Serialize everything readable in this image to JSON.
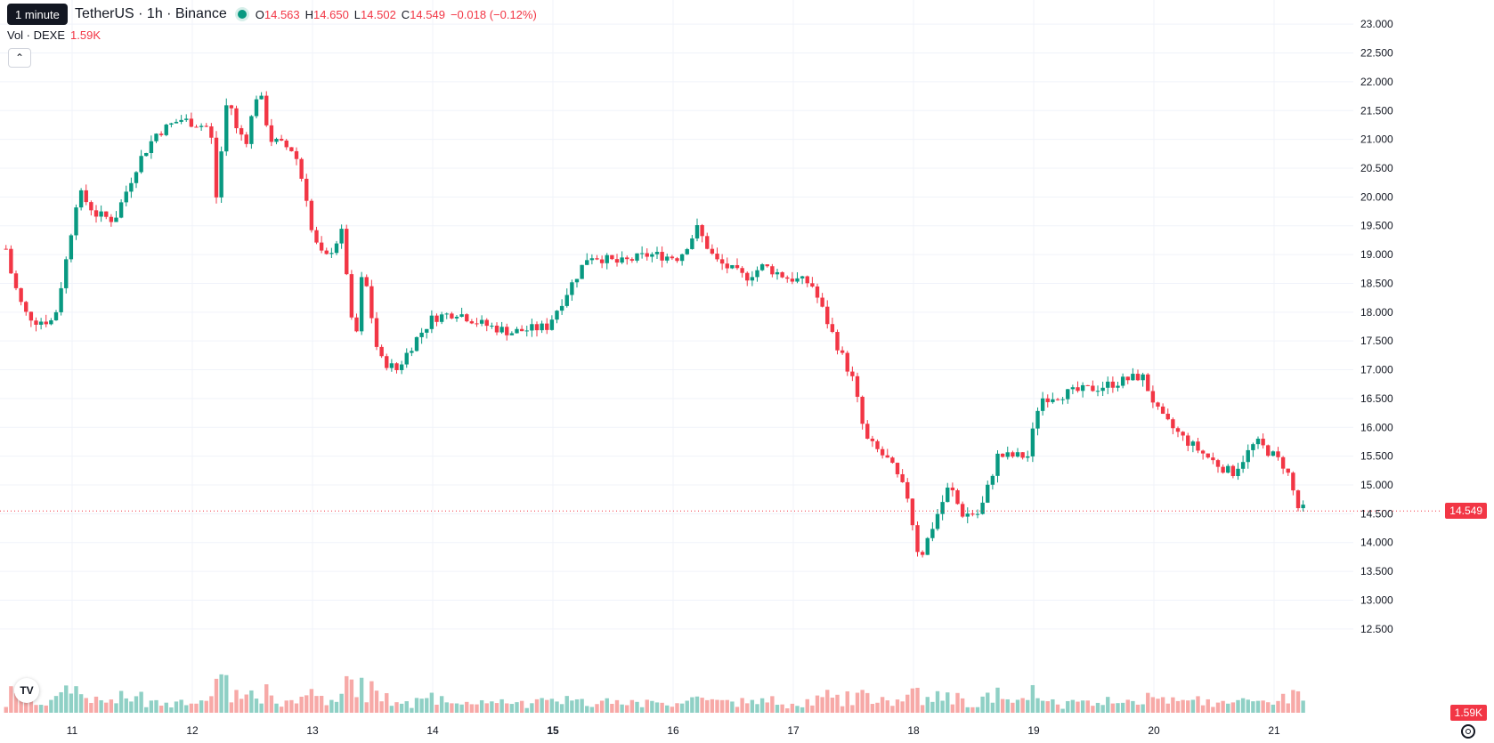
{
  "tooltip": "1 minute",
  "header": {
    "symbol_title": "TetherUS · 1h · Binance",
    "open_label": "O",
    "open": "14.563",
    "high_label": "H",
    "high": "14.650",
    "low_label": "L",
    "low": "14.502",
    "close_label": "C",
    "close": "14.549",
    "change": "−0.018 (−0.12%)"
  },
  "volume_indicator": {
    "label": "Vol · DEXE",
    "value": "1.59K"
  },
  "collapse_icon": "chevron-up-icon",
  "logo_text": "TV",
  "last_price_tag": "14.549",
  "volume_tag": "1.59K",
  "colors": {
    "up": "#089981",
    "down": "#f23645",
    "up_volume": "#8fd0c5",
    "down_volume": "#f7a9a7",
    "grid": "#f0f3fa"
  },
  "chart_data": {
    "type": "candlestick",
    "interval": "1h",
    "x_axis_labels": [
      "11",
      "12",
      "13",
      "14",
      "15",
      "16",
      "17",
      "18",
      "19",
      "20",
      "21"
    ],
    "y_axis_ticks": [
      "23.000",
      "22.500",
      "22.000",
      "21.500",
      "21.000",
      "20.500",
      "20.000",
      "19.500",
      "19.000",
      "18.500",
      "18.000",
      "17.500",
      "17.000",
      "16.500",
      "16.000",
      "15.500",
      "15.000",
      "14.500",
      "14.000",
      "13.500",
      "13.000",
      "12.500"
    ],
    "ylim": [
      12.42,
      23.08
    ],
    "last_price": 14.549,
    "grid": true,
    "close_path": [
      [
        10.45,
        19.1
      ],
      [
        10.5,
        18.6
      ],
      [
        10.6,
        18.0
      ],
      [
        10.7,
        17.85
      ],
      [
        10.85,
        17.85
      ],
      [
        10.95,
        18.9
      ],
      [
        11.05,
        20.1
      ],
      [
        11.2,
        19.7
      ],
      [
        11.35,
        19.6
      ],
      [
        11.55,
        20.6
      ],
      [
        11.7,
        21.1
      ],
      [
        11.9,
        21.35
      ],
      [
        12.15,
        21.2
      ],
      [
        12.2,
        20.0
      ],
      [
        12.3,
        21.9
      ],
      [
        12.35,
        21.2
      ],
      [
        12.45,
        21.0
      ],
      [
        12.55,
        21.9
      ],
      [
        12.65,
        21.0
      ],
      [
        12.85,
        20.8
      ],
      [
        12.95,
        20.0
      ],
      [
        13.0,
        19.3
      ],
      [
        13.1,
        18.9
      ],
      [
        13.25,
        19.4
      ],
      [
        13.35,
        17.3
      ],
      [
        13.42,
        18.8
      ],
      [
        13.55,
        17.2
      ],
      [
        13.7,
        17.0
      ],
      [
        13.85,
        17.5
      ],
      [
        14.0,
        17.9
      ],
      [
        14.2,
        18.0
      ],
      [
        14.4,
        17.8
      ],
      [
        14.65,
        17.65
      ],
      [
        14.95,
        17.75
      ],
      [
        15.3,
        19.0
      ],
      [
        15.55,
        18.85
      ],
      [
        15.8,
        19.0
      ],
      [
        16.05,
        18.95
      ],
      [
        16.2,
        19.45
      ],
      [
        16.35,
        18.9
      ],
      [
        16.6,
        18.6
      ],
      [
        16.75,
        18.8
      ],
      [
        16.95,
        18.6
      ],
      [
        17.15,
        18.5
      ],
      [
        17.35,
        17.5
      ],
      [
        17.5,
        16.8
      ],
      [
        17.6,
        15.8
      ],
      [
        17.8,
        15.4
      ],
      [
        17.95,
        14.8
      ],
      [
        18.05,
        13.7
      ],
      [
        18.2,
        14.5
      ],
      [
        18.3,
        15.0
      ],
      [
        18.4,
        14.5
      ],
      [
        18.55,
        14.5
      ],
      [
        18.7,
        15.5
      ],
      [
        18.95,
        15.5
      ],
      [
        19.05,
        16.5
      ],
      [
        19.3,
        16.6
      ],
      [
        19.55,
        16.7
      ],
      [
        19.9,
        16.9
      ],
      [
        20.05,
        16.2
      ],
      [
        20.25,
        15.8
      ],
      [
        20.5,
        15.4
      ],
      [
        20.65,
        15.2
      ],
      [
        20.85,
        15.75
      ],
      [
        21.0,
        15.5
      ],
      [
        21.1,
        15.3
      ],
      [
        21.2,
        14.6
      ],
      [
        21.28,
        14.549
      ]
    ]
  }
}
